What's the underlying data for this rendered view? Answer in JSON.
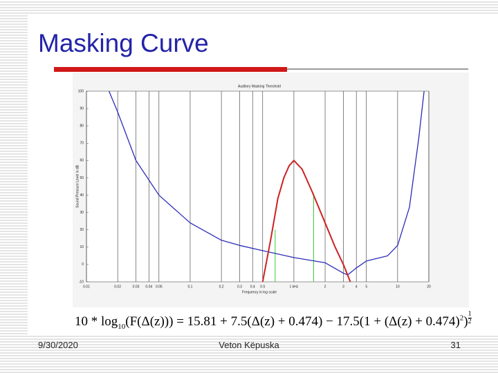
{
  "slide": {
    "title": "Masking Curve",
    "date": "9/30/2020",
    "author": "Veton Këpuska",
    "page": "31",
    "formula": {
      "part1": "10 * log",
      "sub": "10",
      "part2": "(F(Δ(z))) = 15.81 + 7.5(Δ(z) + 0.474) − 17.5(1 + (Δ(z) + 0.474)",
      "sup": "2",
      "part3": ")",
      "exp_num": "1",
      "exp_den": "2"
    }
  },
  "chart_data": {
    "type": "line",
    "title": "Auditory Masking Threshold",
    "x_label": "Frequency in log scale",
    "y_label": "Sound Pressure Level in dB",
    "x_scale": "log",
    "grid": "x",
    "xlim": [
      0.01,
      20
    ],
    "ylim": [
      -10,
      100
    ],
    "xticks": [
      0.01,
      0.02,
      0.03,
      0.04,
      0.05,
      0.1,
      0.2,
      0.3,
      0.4,
      0.5,
      {
        "value": 1,
        "label": "1 kHz"
      },
      2,
      3,
      4,
      5,
      10,
      20
    ],
    "yticks": [
      -10,
      0,
      10,
      20,
      30,
      40,
      50,
      60,
      70,
      80,
      90,
      100
    ],
    "series": [
      {
        "color": "#2b2bb8",
        "x": [
          0.0165,
          0.02,
          0.03,
          0.05,
          0.1,
          0.2,
          0.3,
          0.5,
          1,
          2,
          3,
          3.3,
          4,
          5,
          8,
          10,
          13,
          16,
          18
        ],
        "values": [
          100,
          88,
          60,
          40,
          24,
          14,
          11,
          8,
          4,
          1,
          -5,
          -6,
          -2,
          2,
          5,
          11,
          33,
          73,
          100
        ]
      },
      {
        "color": "#cc2222",
        "x": [
          0.5,
          0.6,
          0.7,
          0.8,
          0.9,
          1,
          1.2,
          1.5,
          2,
          2.5,
          3,
          3.5
        ],
        "values": [
          -10,
          15,
          38,
          50,
          57,
          60,
          55,
          42,
          24,
          10,
          0,
          -10
        ]
      }
    ],
    "reference_lines": {
      "color": "#33cc33",
      "x": [
        0.66,
        1.55
      ],
      "values": [
        20,
        41
      ]
    }
  }
}
